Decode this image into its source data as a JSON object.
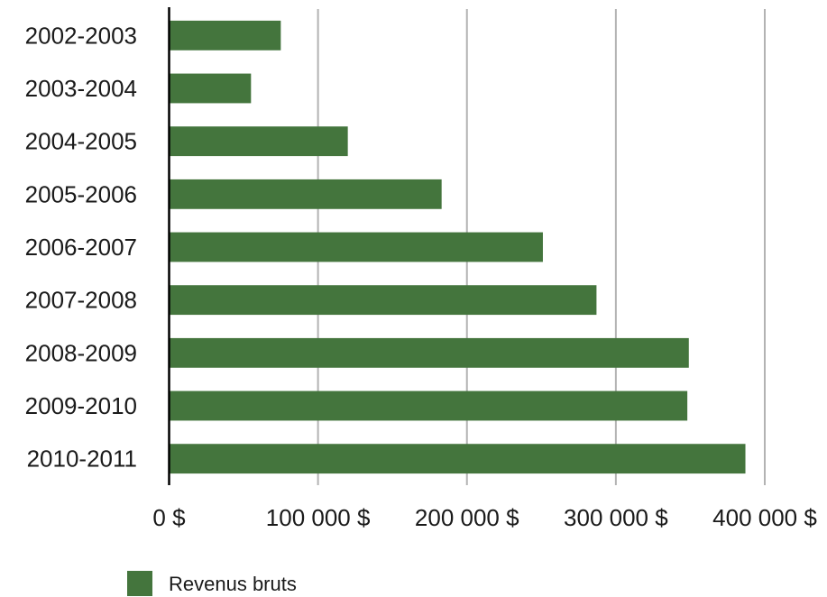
{
  "chart_data": {
    "type": "bar",
    "orientation": "horizontal",
    "categories": [
      "2002-2003",
      "2003-2004",
      "2004-2005",
      "2005-2006",
      "2006-2007",
      "2007-2008",
      "2008-2009",
      "2009-2010",
      "2010-2011"
    ],
    "series": [
      {
        "name": "Revenus bruts",
        "color": "#44753d",
        "values": [
          75000,
          55000,
          120000,
          183000,
          251000,
          287000,
          349000,
          348000,
          387000
        ]
      }
    ],
    "xlim": [
      0,
      400000
    ],
    "x_ticks": [
      0,
      100000,
      200000,
      300000,
      400000
    ],
    "x_tick_labels": [
      "0 $",
      "100 000 $",
      "200 000 $",
      "300 000 $",
      "400 000 $"
    ],
    "grid": "vertical",
    "legend": "bottom-left",
    "title": "",
    "xlabel": "",
    "ylabel": ""
  }
}
